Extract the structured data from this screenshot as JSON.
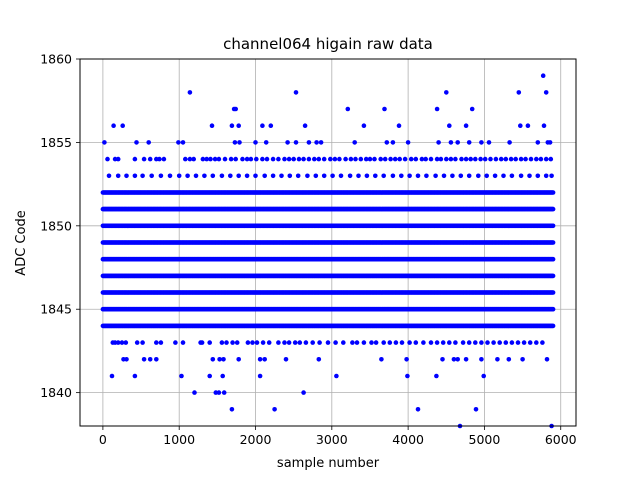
{
  "chart_data": {
    "type": "scatter",
    "title": "channel064 higain raw data",
    "xlabel": "sample number",
    "ylabel": "ADC Code",
    "xlim": [
      -300,
      6200
    ],
    "ylim": [
      1838,
      1860
    ],
    "x_ticks": [
      0,
      1000,
      2000,
      3000,
      4000,
      5000,
      6000
    ],
    "y_ticks": [
      1840,
      1845,
      1850,
      1855,
      1860
    ],
    "grid": true,
    "marker_color": "#0000ff",
    "marker": "circle",
    "sample_count": 5900,
    "dense_levels": [
      1844,
      1845,
      1846,
      1847,
      1848,
      1849,
      1850,
      1851,
      1852
    ],
    "sparse_levels": [
      {
        "value": 1843,
        "points": [
          130,
          160,
          200,
          250,
          300,
          450,
          520,
          700,
          760,
          950,
          1050,
          1280,
          1300,
          1400,
          1560,
          1620,
          1700,
          1760,
          1900,
          1960,
          2020,
          2100,
          2180,
          2300,
          2380,
          2440,
          2520,
          2580,
          2660,
          2750,
          2840,
          2950,
          3050,
          3150,
          3270,
          3330,
          3420,
          3520,
          3580,
          3680,
          3760,
          3840,
          3920,
          4020,
          4100,
          4200,
          4300,
          4380,
          4460,
          4540,
          4620,
          4720,
          4800,
          4880,
          4960,
          5040,
          5120,
          5200,
          5280,
          5360,
          5440,
          5520,
          5600,
          5680,
          5760
        ]
      },
      {
        "value": 1853,
        "points": [
          80,
          200,
          310,
          420,
          520,
          640,
          760,
          880,
          1000,
          1110,
          1220,
          1330,
          1440,
          1560,
          1670,
          1780,
          1890,
          2000,
          2120,
          2230,
          2340,
          2450,
          2560,
          2680,
          2790,
          2900,
          3010,
          3120,
          3240,
          3350,
          3460,
          3570,
          3680,
          3800,
          3910,
          4020,
          4130,
          4240,
          4360,
          4470,
          4580,
          4690,
          4800,
          4920,
          5030,
          5140,
          5250,
          5360,
          5480,
          5590,
          5700,
          5810,
          5880
        ]
      },
      {
        "value": 1842,
        "points": [
          270,
          310,
          540,
          620,
          700,
          1440,
          1530,
          1580,
          1780,
          2060,
          2120,
          2400,
          2830,
          3650,
          3980,
          4450,
          4600,
          4650,
          4760,
          4960,
          5170,
          5320,
          5500,
          5820
        ]
      },
      {
        "value": 1854,
        "points": [
          60,
          160,
          200,
          420,
          540,
          620,
          700,
          740,
          800,
          1080,
          1140,
          1190,
          1310,
          1360,
          1410,
          1470,
          1520,
          1600,
          1680,
          1740,
          1830,
          1890,
          1940,
          2010,
          2090,
          2150,
          2230,
          2300,
          2380,
          2440,
          2500,
          2570,
          2630,
          2700,
          2770,
          2830,
          2900,
          2980,
          3040,
          3100,
          3180,
          3250,
          3310,
          3380,
          3450,
          3500,
          3560,
          3640,
          3700,
          3770,
          3830,
          3890,
          3960,
          4040,
          4100,
          4180,
          4230,
          4300,
          4380,
          4430,
          4500,
          4560,
          4620,
          4700,
          4760,
          4820,
          4880,
          4950,
          5010,
          5080,
          5150,
          5220,
          5280,
          5350,
          5410,
          5480,
          5540,
          5610,
          5680,
          5740,
          5810,
          5870
        ]
      },
      {
        "value": 1855,
        "points": [
          20,
          440,
          600,
          990,
          1050,
          1730,
          1790,
          2000,
          2140,
          2420,
          2530,
          2700,
          2800,
          2860,
          3300,
          3720,
          3800,
          4000,
          4400,
          4560,
          4650,
          4800,
          4960,
          5060,
          5330,
          5700,
          5830,
          5860
        ]
      },
      {
        "value": 1856,
        "points": [
          140,
          260,
          1430,
          1690,
          1780,
          2090,
          2200,
          2650,
          3420,
          3880,
          4540,
          4760,
          5470,
          5570,
          5780
        ]
      },
      {
        "value": 1857,
        "points": [
          1720,
          1740,
          3210,
          3690,
          4380,
          4840
        ]
      },
      {
        "value": 1858,
        "points": [
          1140,
          2530,
          4500,
          5450,
          5810
        ]
      },
      {
        "value": 1859,
        "points": [
          5770
        ]
      },
      {
        "value": 1841,
        "points": [
          120,
          420,
          1030,
          1400,
          1570,
          2060,
          3060,
          3990,
          4370,
          4990
        ]
      },
      {
        "value": 1840,
        "points": [
          1200,
          1480,
          1520,
          1590,
          2630
        ]
      },
      {
        "value": 1839,
        "points": [
          1690,
          2250,
          4130,
          4890
        ]
      },
      {
        "value": 1838,
        "points": [
          4680,
          5880
        ]
      }
    ]
  }
}
